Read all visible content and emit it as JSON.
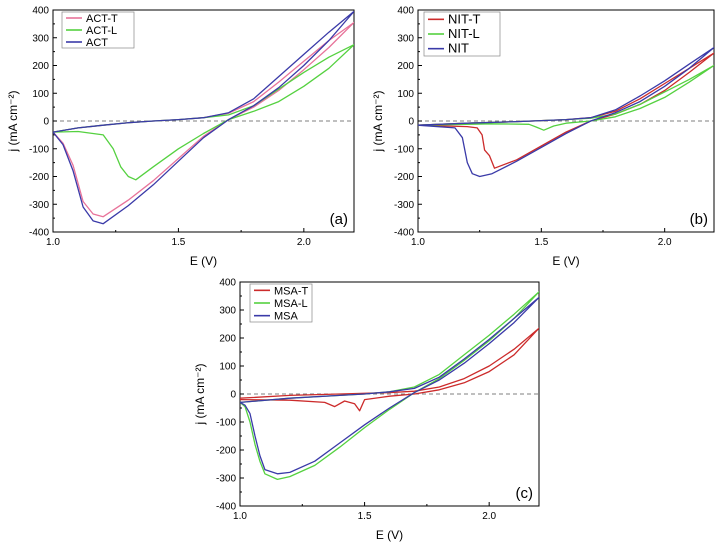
{
  "chart_data": [
    {
      "type": "line",
      "panel_label": "(a)",
      "xlabel": "E (V)",
      "ylabel": "j (mA cm⁻²)",
      "xlim": [
        1.0,
        2.2
      ],
      "ylim": [
        -400,
        400
      ],
      "xticks": [
        1.0,
        1.5,
        2.0
      ],
      "yticks": [
        -400,
        -300,
        -200,
        -100,
        0,
        100,
        200,
        300,
        400
      ],
      "legend": "top-left",
      "series": [
        {
          "name": "ACT-T",
          "color": "#e8739a",
          "forward": [
            [
              1.0,
              -40
            ],
            [
              1.1,
              -25
            ],
            [
              1.2,
              -15
            ],
            [
              1.3,
              -6
            ],
            [
              1.4,
              0
            ],
            [
              1.5,
              5
            ],
            [
              1.6,
              12
            ],
            [
              1.7,
              28
            ],
            [
              1.8,
              70
            ],
            [
              1.9,
              140
            ],
            [
              2.0,
              215
            ],
            [
              2.1,
              290
            ],
            [
              2.2,
              355
            ]
          ],
          "backward": [
            [
              2.2,
              355
            ],
            [
              2.1,
              265
            ],
            [
              2.0,
              185
            ],
            [
              1.9,
              110
            ],
            [
              1.8,
              50
            ],
            [
              1.7,
              5
            ],
            [
              1.6,
              -55
            ],
            [
              1.5,
              -135
            ],
            [
              1.4,
              -215
            ],
            [
              1.3,
              -285
            ],
            [
              1.2,
              -345
            ],
            [
              1.16,
              -335
            ],
            [
              1.12,
              -290
            ],
            [
              1.08,
              -160
            ],
            [
              1.04,
              -80
            ],
            [
              1.0,
              -40
            ]
          ]
        },
        {
          "name": "ACT-L",
          "color": "#55d140",
          "forward": [
            [
              1.0,
              -40
            ],
            [
              1.1,
              -25
            ],
            [
              1.2,
              -15
            ],
            [
              1.3,
              -6
            ],
            [
              1.4,
              0
            ],
            [
              1.5,
              5
            ],
            [
              1.6,
              12
            ],
            [
              1.7,
              22
            ],
            [
              1.8,
              55
            ],
            [
              1.9,
              115
            ],
            [
              2.0,
              175
            ],
            [
              2.1,
              230
            ],
            [
              2.2,
              275
            ]
          ],
          "backward": [
            [
              2.2,
              275
            ],
            [
              2.1,
              190
            ],
            [
              2.0,
              125
            ],
            [
              1.9,
              70
            ],
            [
              1.8,
              35
            ],
            [
              1.7,
              5
            ],
            [
              1.6,
              -45
            ],
            [
              1.5,
              -100
            ],
            [
              1.4,
              -165
            ],
            [
              1.33,
              -212
            ],
            [
              1.3,
              -200
            ],
            [
              1.27,
              -165
            ],
            [
              1.24,
              -100
            ],
            [
              1.2,
              -50
            ],
            [
              1.1,
              -38
            ],
            [
              1.0,
              -40
            ]
          ]
        },
        {
          "name": "ACT",
          "color": "#3a3aa8",
          "forward": [
            [
              1.0,
              -40
            ],
            [
              1.1,
              -25
            ],
            [
              1.2,
              -15
            ],
            [
              1.3,
              -6
            ],
            [
              1.4,
              0
            ],
            [
              1.5,
              5
            ],
            [
              1.6,
              12
            ],
            [
              1.7,
              30
            ],
            [
              1.8,
              80
            ],
            [
              1.9,
              160
            ],
            [
              2.0,
              240
            ],
            [
              2.1,
              320
            ],
            [
              2.2,
              395
            ]
          ],
          "backward": [
            [
              2.2,
              380
            ],
            [
              2.1,
              290
            ],
            [
              2.0,
              200
            ],
            [
              1.9,
              120
            ],
            [
              1.8,
              55
            ],
            [
              1.7,
              5
            ],
            [
              1.6,
              -60
            ],
            [
              1.5,
              -145
            ],
            [
              1.4,
              -230
            ],
            [
              1.3,
              -305
            ],
            [
              1.2,
              -370
            ],
            [
              1.16,
              -360
            ],
            [
              1.12,
              -310
            ],
            [
              1.08,
              -180
            ],
            [
              1.04,
              -85
            ],
            [
              1.0,
              -40
            ]
          ]
        }
      ]
    },
    {
      "type": "line",
      "panel_label": "(b)",
      "xlabel": "E (V)",
      "ylabel": "j (mA cm⁻²)",
      "xlim": [
        1.0,
        2.2
      ],
      "ylim": [
        -400,
        400
      ],
      "xticks": [
        1.0,
        1.5,
        2.0
      ],
      "yticks": [
        -400,
        -300,
        -200,
        -100,
        0,
        100,
        200,
        300,
        400
      ],
      "legend": "top-left",
      "series": [
        {
          "name": "NIT-T",
          "color": "#cc2b2b",
          "forward": [
            [
              1.0,
              -15
            ],
            [
              1.2,
              -8
            ],
            [
              1.4,
              -2
            ],
            [
              1.6,
              5
            ],
            [
              1.7,
              12
            ],
            [
              1.8,
              35
            ],
            [
              1.9,
              80
            ],
            [
              2.0,
              135
            ],
            [
              2.1,
              190
            ],
            [
              2.2,
              245
            ]
          ],
          "backward": [
            [
              2.2,
              245
            ],
            [
              2.1,
              175
            ],
            [
              2.0,
              110
            ],
            [
              1.9,
              60
            ],
            [
              1.8,
              25
            ],
            [
              1.7,
              0
            ],
            [
              1.6,
              -40
            ],
            [
              1.5,
              -90
            ],
            [
              1.4,
              -140
            ],
            [
              1.31,
              -170
            ],
            [
              1.29,
              -125
            ],
            [
              1.27,
              -105
            ],
            [
              1.26,
              -50
            ],
            [
              1.24,
              -25
            ],
            [
              1.2,
              -20
            ],
            [
              1.0,
              -15
            ]
          ]
        },
        {
          "name": "NIT-L",
          "color": "#55d140",
          "forward": [
            [
              1.0,
              -15
            ],
            [
              1.2,
              -8
            ],
            [
              1.4,
              -2
            ],
            [
              1.6,
              5
            ],
            [
              1.7,
              10
            ],
            [
              1.8,
              25
            ],
            [
              1.9,
              60
            ],
            [
              2.0,
              105
            ],
            [
              2.1,
              150
            ],
            [
              2.2,
              200
            ]
          ],
          "backward": [
            [
              2.2,
              195
            ],
            [
              2.1,
              140
            ],
            [
              2.0,
              85
            ],
            [
              1.9,
              45
            ],
            [
              1.8,
              15
            ],
            [
              1.7,
              0
            ],
            [
              1.6,
              -8
            ],
            [
              1.55,
              -18
            ],
            [
              1.51,
              -33
            ],
            [
              1.48,
              -22
            ],
            [
              1.45,
              -12
            ],
            [
              1.3,
              -10
            ],
            [
              1.0,
              -15
            ]
          ]
        },
        {
          "name": "NIT",
          "color": "#3a3aa8",
          "forward": [
            [
              1.0,
              -15
            ],
            [
              1.2,
              -8
            ],
            [
              1.4,
              -2
            ],
            [
              1.6,
              5
            ],
            [
              1.7,
              12
            ],
            [
              1.8,
              40
            ],
            [
              1.9,
              90
            ],
            [
              2.0,
              145
            ],
            [
              2.1,
              205
            ],
            [
              2.2,
              265
            ]
          ],
          "backward": [
            [
              2.2,
              260
            ],
            [
              2.1,
              190
            ],
            [
              2.0,
              125
            ],
            [
              1.9,
              70
            ],
            [
              1.8,
              30
            ],
            [
              1.7,
              0
            ],
            [
              1.6,
              -45
            ],
            [
              1.5,
              -95
            ],
            [
              1.4,
              -145
            ],
            [
              1.3,
              -190
            ],
            [
              1.25,
              -200
            ],
            [
              1.22,
              -190
            ],
            [
              1.2,
              -150
            ],
            [
              1.18,
              -60
            ],
            [
              1.15,
              -25
            ],
            [
              1.0,
              -15
            ]
          ]
        }
      ]
    },
    {
      "type": "line",
      "panel_label": "(c)",
      "xlabel": "E (V)",
      "ylabel": "j (mA cm⁻²)",
      "xlim": [
        1.0,
        2.2
      ],
      "ylim": [
        -400,
        400
      ],
      "xticks": [
        1.0,
        1.5,
        2.0
      ],
      "yticks": [
        -400,
        -300,
        -200,
        -100,
        0,
        100,
        200,
        300,
        400
      ],
      "legend": "top-left",
      "series": [
        {
          "name": "MSA-T",
          "color": "#cc2b2b",
          "forward": [
            [
              1.0,
              -15
            ],
            [
              1.2,
              -5
            ],
            [
              1.4,
              0
            ],
            [
              1.6,
              5
            ],
            [
              1.7,
              10
            ],
            [
              1.8,
              25
            ],
            [
              1.9,
              55
            ],
            [
              2.0,
              100
            ],
            [
              2.1,
              160
            ],
            [
              2.2,
              235
            ]
          ],
          "backward": [
            [
              2.2,
              235
            ],
            [
              2.1,
              140
            ],
            [
              2.0,
              80
            ],
            [
              1.9,
              40
            ],
            [
              1.8,
              15
            ],
            [
              1.7,
              0
            ],
            [
              1.6,
              -8
            ],
            [
              1.5,
              -20
            ],
            [
              1.48,
              -60
            ],
            [
              1.46,
              -35
            ],
            [
              1.42,
              -25
            ],
            [
              1.38,
              -45
            ],
            [
              1.34,
              -30
            ],
            [
              1.2,
              -22
            ],
            [
              1.0,
              -20
            ]
          ]
        },
        {
          "name": "MSA-L",
          "color": "#55d140",
          "forward": [
            [
              1.0,
              -30
            ],
            [
              1.2,
              -15
            ],
            [
              1.4,
              -5
            ],
            [
              1.5,
              0
            ],
            [
              1.6,
              8
            ],
            [
              1.7,
              25
            ],
            [
              1.8,
              70
            ],
            [
              1.9,
              140
            ],
            [
              2.0,
              210
            ],
            [
              2.1,
              285
            ],
            [
              2.2,
              365
            ]
          ],
          "backward": [
            [
              2.2,
              360
            ],
            [
              2.1,
              270
            ],
            [
              2.0,
              190
            ],
            [
              1.9,
              120
            ],
            [
              1.8,
              55
            ],
            [
              1.7,
              5
            ],
            [
              1.6,
              -55
            ],
            [
              1.5,
              -120
            ],
            [
              1.4,
              -190
            ],
            [
              1.3,
              -255
            ],
            [
              1.2,
              -295
            ],
            [
              1.15,
              -305
            ],
            [
              1.1,
              -285
            ],
            [
              1.08,
              -240
            ],
            [
              1.06,
              -180
            ],
            [
              1.04,
              -100
            ],
            [
              1.02,
              -45
            ],
            [
              1.0,
              -30
            ]
          ]
        },
        {
          "name": "MSA",
          "color": "#3a3aa8",
          "forward": [
            [
              1.0,
              -30
            ],
            [
              1.2,
              -15
            ],
            [
              1.4,
              -5
            ],
            [
              1.5,
              0
            ],
            [
              1.6,
              8
            ],
            [
              1.7,
              20
            ],
            [
              1.8,
              60
            ],
            [
              1.9,
              125
            ],
            [
              2.0,
              195
            ],
            [
              2.1,
              270
            ],
            [
              2.2,
              345
            ]
          ],
          "backward": [
            [
              2.2,
              340
            ],
            [
              2.1,
              255
            ],
            [
              2.0,
              180
            ],
            [
              1.9,
              110
            ],
            [
              1.8,
              50
            ],
            [
              1.7,
              5
            ],
            [
              1.6,
              -50
            ],
            [
              1.5,
              -110
            ],
            [
              1.4,
              -175
            ],
            [
              1.3,
              -240
            ],
            [
              1.2,
              -280
            ],
            [
              1.15,
              -285
            ],
            [
              1.1,
              -270
            ],
            [
              1.08,
              -220
            ],
            [
              1.06,
              -150
            ],
            [
              1.04,
              -70
            ],
            [
              1.02,
              -40
            ],
            [
              1.0,
              -30
            ]
          ]
        }
      ]
    }
  ]
}
